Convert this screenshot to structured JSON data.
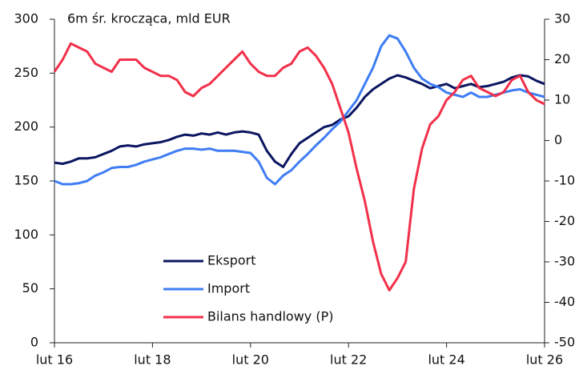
{
  "chart_data": {
    "type": "line",
    "title": "6m śr. krocząca, mld EUR",
    "categories": [
      "lut 16",
      null,
      null,
      null,
      null,
      null,
      null,
      null,
      null,
      null,
      null,
      null,
      "lut 18",
      null,
      null,
      null,
      null,
      null,
      null,
      null,
      null,
      null,
      null,
      null,
      "lut 20",
      null,
      null,
      null,
      null,
      null,
      null,
      null,
      null,
      null,
      null,
      null,
      "lut 22",
      null,
      null,
      null,
      null,
      null,
      null,
      null,
      null,
      null,
      null,
      null,
      "lut 24",
      null,
      null,
      null,
      null,
      null,
      null,
      null,
      null,
      null,
      null,
      null,
      "lut 26"
    ],
    "series": [
      {
        "name": "Eksport",
        "color": "#0b1660",
        "values": [
          167,
          166,
          168,
          171,
          171,
          172,
          175,
          178,
          182,
          183,
          182,
          184,
          185,
          186,
          188,
          191,
          193,
          192,
          194,
          193,
          195,
          193,
          195,
          196,
          195,
          193,
          178,
          168,
          163,
          175,
          185,
          190,
          195,
          200,
          202,
          207,
          210,
          218,
          228,
          235,
          240,
          245,
          248,
          246,
          243,
          240,
          236,
          238,
          240,
          236,
          238,
          240,
          237,
          238,
          240,
          242,
          246,
          248,
          247,
          243,
          240
        ]
      },
      {
        "name": "Import",
        "color": "#3f7df4",
        "values": [
          150,
          147,
          147,
          148,
          150,
          155,
          158,
          162,
          163,
          163,
          165,
          168,
          170,
          172,
          175,
          178,
          180,
          180,
          179,
          180,
          178,
          178,
          178,
          177,
          176,
          168,
          153,
          147,
          155,
          160,
          168,
          175,
          183,
          190,
          198,
          205,
          215,
          225,
          240,
          255,
          275,
          285,
          282,
          270,
          255,
          245,
          240,
          237,
          232,
          230,
          228,
          232,
          228,
          228,
          230,
          232,
          234,
          235,
          232,
          230,
          228
        ]
      },
      {
        "name": "Bilans handlowy (P)",
        "color": "#f2304a",
        "axis": "y2",
        "values": [
          17,
          20,
          24,
          23,
          22,
          19,
          18,
          17,
          20,
          20,
          20,
          18,
          17,
          16,
          16,
          15,
          12,
          11,
          13,
          14,
          16,
          18,
          20,
          22,
          19,
          17,
          16,
          16,
          18,
          19,
          22,
          23,
          21,
          18,
          14,
          8,
          2,
          -7,
          -15,
          -25,
          -33,
          -37,
          -34,
          -30,
          -12,
          -2,
          4,
          6,
          10,
          12,
          15,
          16,
          13,
          12,
          11,
          12,
          15,
          16,
          12,
          10,
          9
        ]
      }
    ],
    "ylim": [
      0,
      300
    ],
    "yticks": [
      0,
      50,
      100,
      150,
      200,
      250,
      300
    ],
    "y2lim": [
      -50,
      30
    ],
    "y2ticks": [
      -50,
      -40,
      -30,
      -20,
      -10,
      0,
      10,
      20,
      30
    ],
    "grid": false,
    "legend": "lower center"
  }
}
